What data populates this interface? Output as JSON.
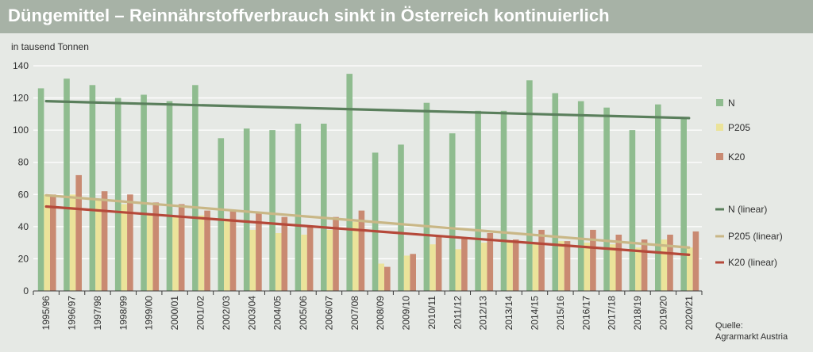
{
  "header": {
    "title": "Düngemittel – Reinnährstoffverbrauch sinkt in Österreich kontinuierlich"
  },
  "chart_data": {
    "type": "bar",
    "ylabel": "in tausend Tonnen",
    "ylim": [
      0,
      140
    ],
    "yticks": [
      0,
      20,
      40,
      60,
      80,
      100,
      120,
      140
    ],
    "categories": [
      "1995/96",
      "1996/97",
      "1997/98",
      "1998/99",
      "1999/00",
      "2000/01",
      "2001/02",
      "2002/03",
      "2003/04",
      "2004/05",
      "2005/06",
      "2006/07",
      "2007/08",
      "2008/09",
      "2009/10",
      "2010/11",
      "2011/12",
      "2012/13",
      "2013/14",
      "2014/15",
      "2015/16",
      "2016/17",
      "2017/18",
      "2018/19",
      "2019/20",
      "2020/21"
    ],
    "series": [
      {
        "name": "N",
        "color": "#8fbc8f",
        "values": [
          126,
          132,
          128,
          120,
          122,
          118,
          128,
          95,
          101,
          100,
          104,
          104,
          135,
          86,
          91,
          117,
          98,
          112,
          112,
          131,
          123,
          118,
          114,
          100,
          116,
          107
        ]
      },
      {
        "name": "P205",
        "color": "#ebe39a",
        "values": [
          60,
          60,
          57,
          54,
          48,
          47,
          47,
          45,
          38,
          36,
          35,
          38,
          43,
          17,
          22,
          29,
          26,
          30,
          31,
          30,
          31,
          30,
          29,
          27,
          32,
          27
        ]
      },
      {
        "name": "K20",
        "color": "#c98a72",
        "values": [
          60,
          72,
          62,
          60,
          55,
          54,
          50,
          50,
          49,
          46,
          40,
          46,
          50,
          15,
          23,
          34,
          33,
          36,
          32,
          38,
          31,
          38,
          35,
          32,
          35,
          37
        ]
      }
    ],
    "trendlines": [
      {
        "name": "N (linear)",
        "color": "#5a7f5c",
        "start": 118,
        "end": 107.5
      },
      {
        "name": "P205 (linear)",
        "color": "#c9b786",
        "start": 59.5,
        "end": 27
      },
      {
        "name": "K20 (linear)",
        "color": "#b5493a",
        "start": 52.5,
        "end": 22.5
      }
    ],
    "grid": true,
    "legend_position": "right"
  },
  "source": {
    "line1": "Quelle:",
    "line2": "Agrarmarkt Austria"
  }
}
